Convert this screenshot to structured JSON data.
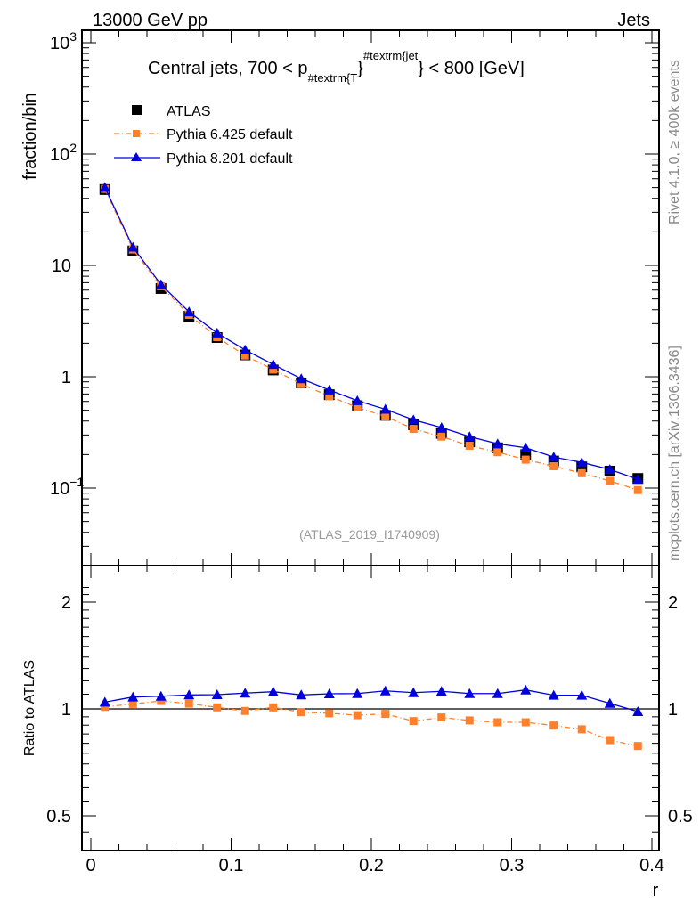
{
  "header": {
    "left": "13000 GeV pp",
    "right": "Jets"
  },
  "side_labels": {
    "rivet": "Rivet 4.1.0, ≥ 400k events",
    "mcplots": "mcplots.cern.ch [arXiv:1306.3436]"
  },
  "chart_data": [
    {
      "type": "line",
      "title": "Central jets, 700 < p",
      "title_sub": "#textrm{T",
      "title_sup": "#textrm{jet",
      "title_end": "} < 800 [GeV]",
      "title_brace": "}",
      "ylabel": "fraction/bin",
      "yscale": "log",
      "ylim": [
        0.025,
        1300
      ],
      "ytick_labels": [
        {
          "v": 1000,
          "base": "10",
          "exp": "3"
        },
        {
          "v": 100,
          "base": "10",
          "exp": "2"
        },
        {
          "v": 10,
          "base": "10",
          "exp": ""
        },
        {
          "v": 1,
          "base": "1",
          "exp": ""
        },
        {
          "v": 0.1,
          "base": "10",
          "exp": "−1"
        }
      ],
      "watermark": "(ATLAS_2019_I1740909)",
      "legend_position": "top-left",
      "x": [
        0.01,
        0.03,
        0.05,
        0.07,
        0.09,
        0.11,
        0.13,
        0.15,
        0.17,
        0.19,
        0.21,
        0.23,
        0.25,
        0.27,
        0.29,
        0.31,
        0.33,
        0.35,
        0.37,
        0.39
      ],
      "series": [
        {
          "name": "ATLAS",
          "color": "#000000",
          "marker": "square",
          "values": [
            48,
            13.5,
            6.2,
            3.5,
            2.25,
            1.57,
            1.15,
            0.88,
            0.69,
            0.55,
            0.45,
            0.37,
            0.31,
            0.26,
            0.23,
            0.2,
            0.175,
            0.155,
            0.142,
            0.122
          ]
        },
        {
          "name": "Pythia 6.425 default",
          "color": "#ff7f2a",
          "marker": "square",
          "dash": "dashdot",
          "values": [
            48.6,
            13.9,
            6.5,
            3.6,
            2.27,
            1.55,
            1.16,
            0.86,
            0.67,
            0.53,
            0.44,
            0.34,
            0.29,
            0.24,
            0.21,
            0.18,
            0.157,
            0.136,
            0.116,
            0.096
          ]
        },
        {
          "name": "Pythia 8.201 default",
          "color": "#0000dd",
          "marker": "triangle",
          "values": [
            50.2,
            14.6,
            6.73,
            3.83,
            2.47,
            1.74,
            1.29,
            0.96,
            0.76,
            0.61,
            0.51,
            0.41,
            0.35,
            0.29,
            0.25,
            0.23,
            0.19,
            0.17,
            0.147,
            0.12
          ]
        }
      ]
    },
    {
      "type": "line",
      "ylabel": "Ratio to ATLAS",
      "xlabel": "r",
      "yscale": "log",
      "ylim": [
        0.42,
        2.35
      ],
      "xlim": [
        -0.0065,
        0.4045
      ],
      "yticks": [
        {
          "v": 2,
          "label": "2"
        },
        {
          "v": 1,
          "label": "1"
        },
        {
          "v": 0.5,
          "label": "0.5"
        }
      ],
      "xticks": [
        {
          "v": 0,
          "label": "0"
        },
        {
          "v": 0.1,
          "label": "0.1"
        },
        {
          "v": 0.2,
          "label": "0.2"
        },
        {
          "v": 0.3,
          "label": "0.3"
        },
        {
          "v": 0.4,
          "label": "0.4"
        }
      ],
      "series": [
        {
          "name": "Pythia 6.425 default",
          "color": "#ff7f2a",
          "values": [
            1.013,
            1.033,
            1.053,
            1.035,
            1.01,
            0.987,
            1.01,
            0.979,
            0.972,
            0.96,
            0.968,
            0.924,
            0.946,
            0.928,
            0.917,
            0.917,
            0.898,
            0.876,
            0.817,
            0.786
          ]
        },
        {
          "name": "Pythia 8.201 default",
          "color": "#0000dd",
          "values": [
            1.045,
            1.08,
            1.086,
            1.095,
            1.097,
            1.108,
            1.118,
            1.095,
            1.103,
            1.105,
            1.124,
            1.111,
            1.121,
            1.105,
            1.105,
            1.131,
            1.093,
            1.093,
            1.037,
            0.983
          ]
        }
      ]
    }
  ]
}
